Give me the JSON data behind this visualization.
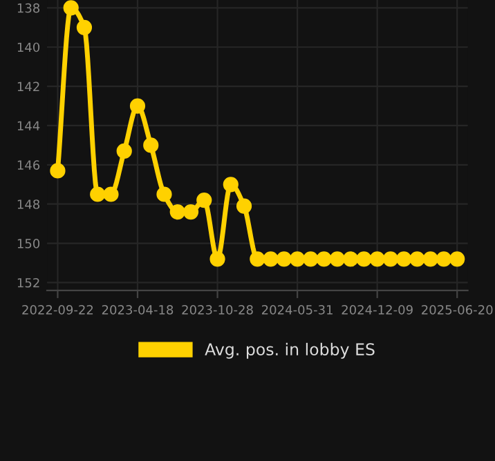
{
  "chart_data": {
    "type": "line",
    "categories": [
      "2022-09-22",
      null,
      null,
      null,
      null,
      null,
      "2023-04-18",
      null,
      null,
      null,
      null,
      null,
      "2023-10-28",
      null,
      null,
      null,
      null,
      null,
      "2024-05-31",
      null,
      null,
      null,
      null,
      null,
      "2024-12-09",
      null,
      null,
      null,
      null,
      null,
      "2025-06-20"
    ],
    "series": [
      {
        "name": "Avg. pos. in lobby ES",
        "color": "#ffd100",
        "values": [
          146.3,
          138,
          139,
          147.5,
          147.5,
          145.3,
          143,
          145,
          147.5,
          148.4,
          148.4,
          147.8,
          150.8,
          147,
          148.1,
          150.8,
          150.8,
          150.8,
          150.8,
          150.8,
          150.8,
          150.8,
          150.8,
          150.8,
          150.8,
          150.8,
          150.8,
          150.8,
          150.8,
          150.8,
          150.8
        ]
      }
    ],
    "ylim": [
      152.4,
      137.6
    ],
    "yticks": [
      138,
      140,
      142,
      144,
      146,
      148,
      150,
      152
    ],
    "grid": true,
    "legend": "bottom",
    "marker": "circle",
    "line_style": "solid"
  }
}
